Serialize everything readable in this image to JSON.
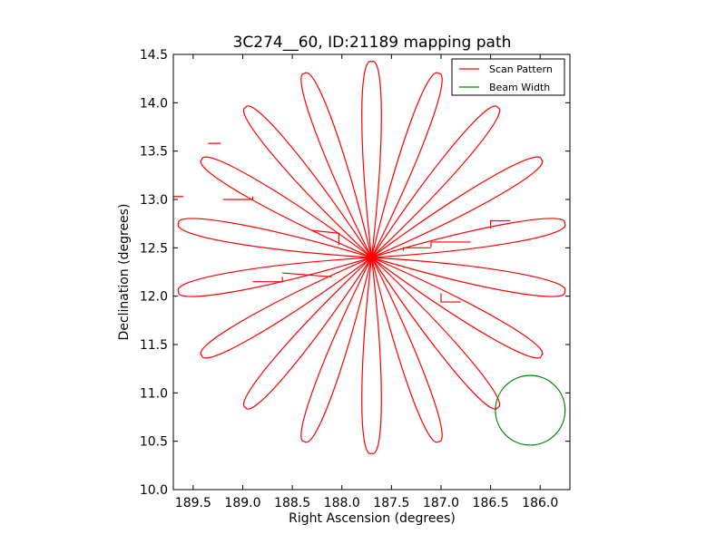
{
  "chart_data": {
    "type": "line",
    "title": "3C274__60, ID:21189 mapping path",
    "xlabel": "Right Ascension (degrees)",
    "ylabel": "Declination (degrees)",
    "xlim": [
      189.7,
      185.7
    ],
    "ylim": [
      10.0,
      14.5
    ],
    "x_inverted": true,
    "xticks": [
      189.5,
      189.0,
      188.5,
      188.0,
      187.5,
      187.0,
      186.5,
      186.0
    ],
    "xtick_labels": [
      "189.5",
      "189.0",
      "188.5",
      "188.0",
      "187.5",
      "187.0",
      "186.5",
      "186.0"
    ],
    "yticks": [
      10.0,
      10.5,
      11.0,
      11.5,
      12.0,
      12.5,
      13.0,
      13.5,
      14.0,
      14.5
    ],
    "ytick_labels": [
      "10.0",
      "10.5",
      "11.0",
      "11.5",
      "12.0",
      "12.5",
      "13.0",
      "13.5",
      "14.0",
      "14.5"
    ],
    "grid": false,
    "legend_position": "top-right",
    "legend": [
      {
        "label": "Scan Pattern",
        "color": "#ff0000"
      },
      {
        "label": "Beam Width",
        "color": "#008000"
      }
    ],
    "series": [
      {
        "name": "Scan Pattern",
        "color": "#ff0000",
        "pattern": "rosette",
        "center": [
          187.7,
          12.4
        ],
        "petals": 18,
        "petal_length_deg": 2.0,
        "points": [
          [
            188.03,
            12.53
          ],
          [
            188.03,
            12.65
          ],
          [
            188.3,
            12.68
          ],
          [
            187.1,
            12.51
          ],
          [
            187.1,
            12.56
          ],
          [
            186.7,
            12.56
          ],
          [
            187.38,
            12.47
          ],
          [
            187.38,
            12.5
          ],
          [
            187.1,
            12.5
          ],
          [
            188.9,
            13.03
          ],
          [
            188.9,
            13.0
          ],
          [
            189.2,
            13.0
          ],
          [
            189.7,
            13.03
          ],
          [
            189.6,
            13.03
          ],
          [
            189.35,
            13.58
          ],
          [
            189.22,
            13.58
          ],
          [
            186.5,
            12.7
          ],
          [
            186.5,
            12.78
          ],
          [
            186.3,
            12.78
          ],
          [
            188.6,
            12.2
          ],
          [
            188.6,
            12.15
          ],
          [
            188.9,
            12.15
          ],
          [
            187.0,
            12.03
          ],
          [
            187.0,
            11.94
          ],
          [
            186.8,
            11.94
          ],
          [
            188.1,
            12.2
          ],
          [
            188.6,
            12.24
          ]
        ]
      },
      {
        "name": "Beam Width",
        "color": "#008000",
        "center": [
          186.1,
          10.82
        ],
        "radius_deg": 0.36
      }
    ]
  }
}
